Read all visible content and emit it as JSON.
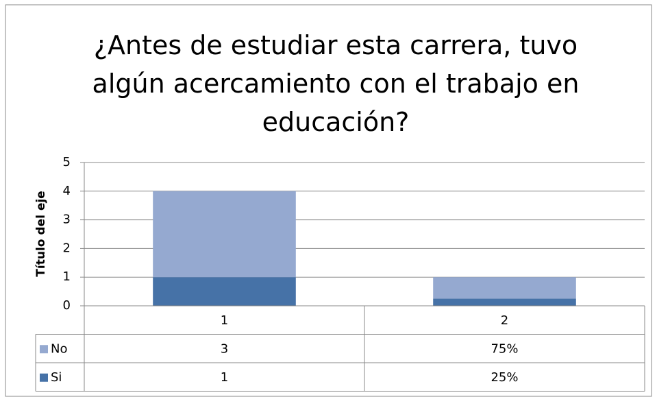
{
  "chart_data": {
    "type": "stacked_bar",
    "title": "¿Antes de estudiar esta carrera, tuvo algún acercamiento con el trabajo en educación?",
    "y_label": "Título del eje",
    "categories": [
      "1",
      "2"
    ],
    "series": [
      {
        "name": "No",
        "color": "#95a9d0",
        "values": [
          3,
          0.75
        ],
        "value_labels": [
          "3",
          "75%"
        ]
      },
      {
        "name": "Si",
        "color": "#4672a7",
        "values": [
          1,
          0.25
        ],
        "value_labels": [
          "1",
          "25%"
        ]
      }
    ],
    "ylim": [
      0,
      5
    ],
    "yticks": [
      0,
      1,
      2,
      3,
      4,
      5
    ],
    "grid": true
  }
}
